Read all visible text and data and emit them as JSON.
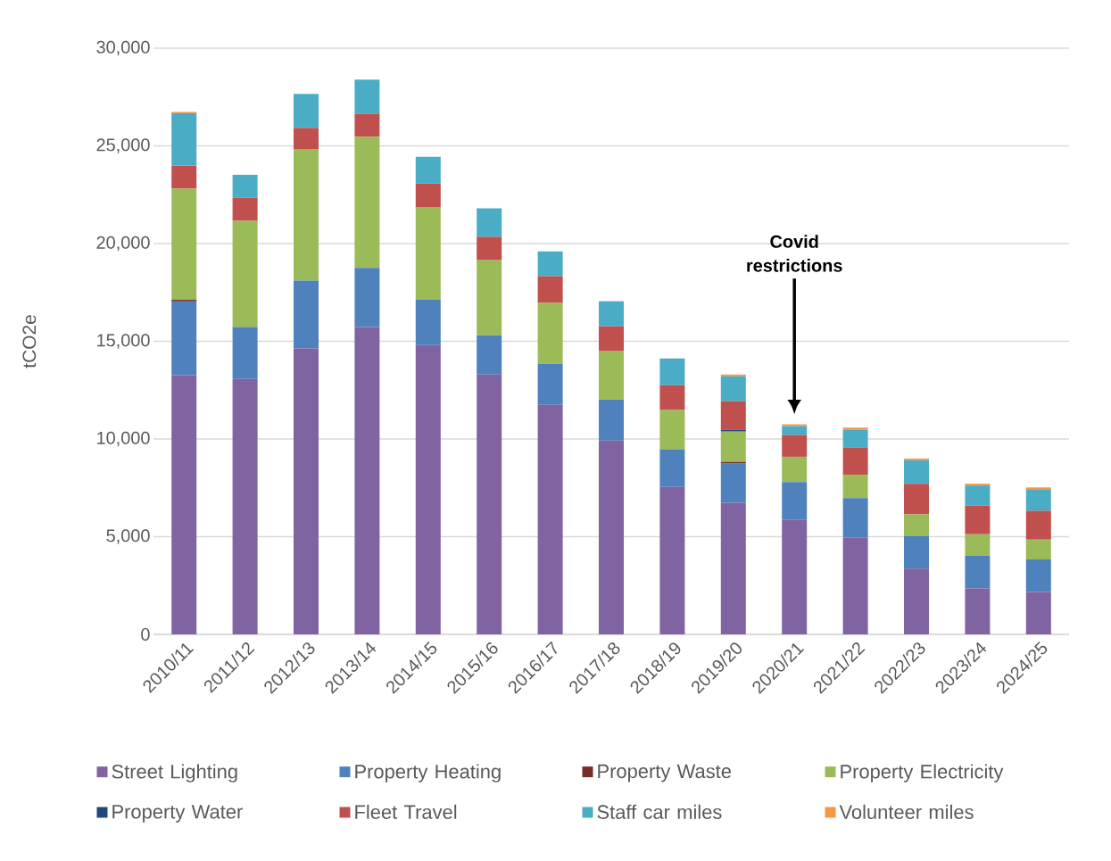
{
  "chart_data": {
    "type": "bar",
    "stacked": true,
    "ylabel": "tCO2e",
    "categories": [
      "2010/11",
      "2011/12",
      "2012/13",
      "2013/14",
      "2014/15",
      "2015/16",
      "2016/17",
      "2017/18",
      "2018/19",
      "2019/20",
      "2020/21",
      "2021/22",
      "2022/23",
      "2023/24",
      "2024/25"
    ],
    "series": [
      {
        "name": "Street Lighting",
        "color": "#8064a2",
        "values": [
          13260,
          13070,
          14630,
          15730,
          14810,
          13300,
          11750,
          9920,
          7550,
          6730,
          5860,
          4940,
          3370,
          2350,
          2170
        ]
      },
      {
        "name": "Property Heating",
        "color": "#4f81bd",
        "values": [
          3780,
          2660,
          3480,
          3030,
          2310,
          2010,
          2100,
          2100,
          1920,
          2010,
          1940,
          2030,
          1660,
          1670,
          1660
        ]
      },
      {
        "name": "Property Waste",
        "color": "#772c2a",
        "values": [
          80,
          0,
          0,
          0,
          0,
          0,
          0,
          0,
          0,
          90,
          0,
          0,
          0,
          0,
          0
        ]
      },
      {
        "name": "Property Electricity",
        "color": "#9bbb59",
        "values": [
          5690,
          5430,
          6700,
          6710,
          4750,
          3840,
          3110,
          2470,
          2010,
          1550,
          1290,
          1200,
          1110,
          1100,
          1020
        ]
      },
      {
        "name": "Property Water",
        "color": "#1f497d",
        "values": [
          0,
          0,
          0,
          0,
          0,
          0,
          0,
          0,
          0,
          90,
          0,
          0,
          0,
          0,
          0
        ]
      },
      {
        "name": "Fleet Travel",
        "color": "#c0504d",
        "values": [
          1180,
          1180,
          1110,
          1180,
          1200,
          1200,
          1370,
          1280,
          1270,
          1460,
          1110,
          1380,
          1570,
          1480,
          1470
        ]
      },
      {
        "name": "Staff car miles",
        "color": "#4bacc6",
        "values": [
          2680,
          1180,
          1740,
          1740,
          1370,
          1450,
          1270,
          1280,
          1370,
          1280,
          460,
          930,
          1200,
          1020,
          1110
        ]
      },
      {
        "name": "Volunteer miles",
        "color": "#f79646",
        "values": [
          70,
          0,
          0,
          0,
          0,
          0,
          0,
          0,
          0,
          90,
          90,
          100,
          90,
          90,
          90
        ]
      }
    ],
    "ylim": [
      0,
      30000
    ],
    "yticks": [
      0,
      {
        "value": 5000,
        "label": "5,000"
      },
      {
        "value": 10000,
        "label": "10,000"
      },
      {
        "value": 15000,
        "label": "15,000"
      },
      {
        "value": 20000,
        "label": "20,000"
      },
      {
        "value": 25000,
        "label": "25,000"
      },
      {
        "value": 30000,
        "label": "30,000"
      }
    ],
    "grid": "y",
    "legend": "bottom",
    "annotations": [
      "Covid restrictions"
    ]
  }
}
